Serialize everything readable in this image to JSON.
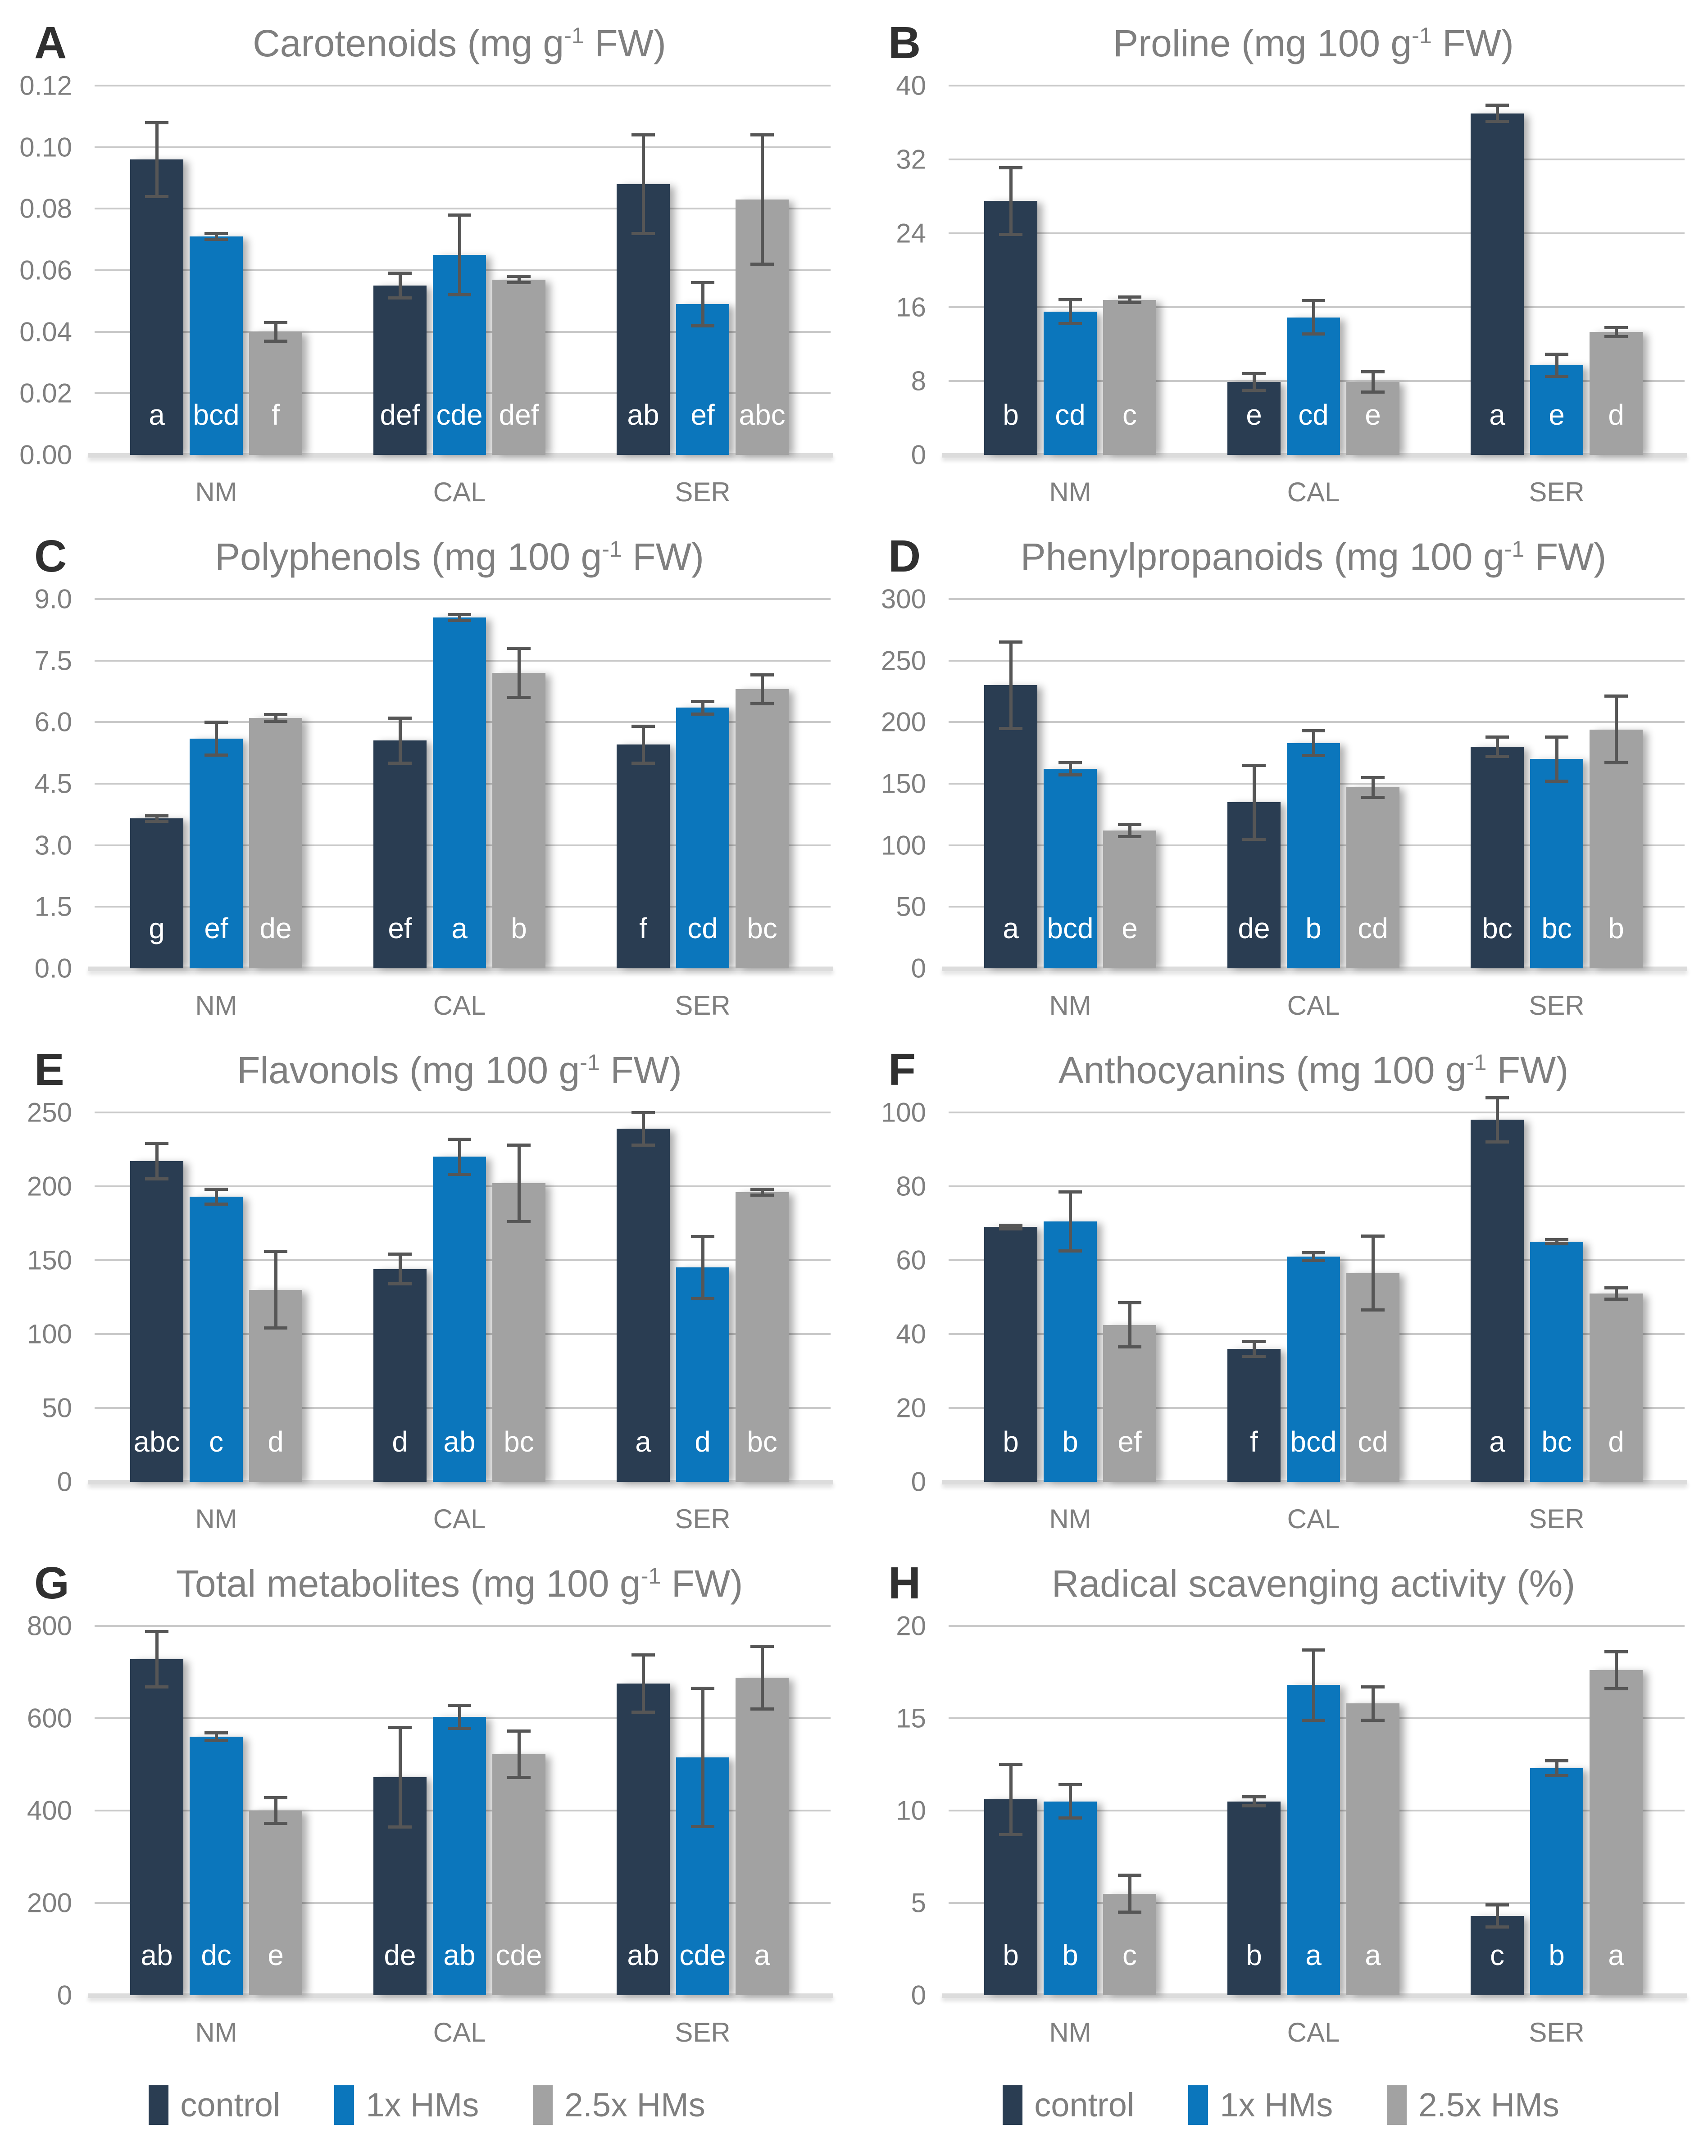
{
  "figure": {
    "legend": {
      "items": [
        {
          "label": "control",
          "color": "#2a3d52"
        },
        {
          "label": "1x HMs",
          "color": "#0b76bc"
        },
        {
          "label": "2.5x HMs",
          "color": "#a2a2a2"
        }
      ],
      "position": "bottom"
    },
    "groups": [
      "NM",
      "CAL",
      "SER"
    ],
    "series_names": [
      "control",
      "1x HMs",
      "2.5x HMs"
    ],
    "error_bar_color": "#565656",
    "gridline_color": "#c9c9c9",
    "text_color": "#7f7f7f"
  },
  "chart_data": [
    {
      "panel": "A",
      "type": "bar",
      "grid": true,
      "title": "Carotenoids (mg g-1 FW)",
      "title_parts": {
        "pre": "Carotenoids (mg g",
        "sup": "-1",
        "post": " FW)"
      },
      "categories": [
        "NM",
        "CAL",
        "SER"
      ],
      "ylim": [
        0,
        0.12
      ],
      "yticks": [
        "0.00",
        "0.02",
        "0.04",
        "0.06",
        "0.08",
        "0.10",
        "0.12"
      ],
      "series": [
        {
          "name": "control",
          "values": [
            0.096,
            0.055,
            0.088
          ],
          "errors": [
            0.012,
            0.004,
            0.016
          ],
          "letters": [
            "a",
            "def",
            "ab"
          ]
        },
        {
          "name": "1x HMs",
          "values": [
            0.071,
            0.065,
            0.049
          ],
          "errors": [
            0.001,
            0.013,
            0.007
          ],
          "letters": [
            "bcd",
            "cde",
            "ef"
          ]
        },
        {
          "name": "2.5x HMs",
          "values": [
            0.04,
            0.057,
            0.083
          ],
          "errors": [
            0.003,
            0.001,
            0.021
          ],
          "letters": [
            "f",
            "def",
            "abc"
          ]
        }
      ]
    },
    {
      "panel": "B",
      "type": "bar",
      "grid": true,
      "title": "Proline (mg 100 g-1 FW)",
      "title_parts": {
        "pre": "Proline (mg 100 g",
        "sup": "-1",
        "post": " FW)"
      },
      "categories": [
        "NM",
        "CAL",
        "SER"
      ],
      "ylim": [
        0,
        40
      ],
      "yticks": [
        "0",
        "8",
        "16",
        "24",
        "32",
        "40"
      ],
      "series": [
        {
          "name": "control",
          "values": [
            27.5,
            7.9,
            37.0
          ],
          "errors": [
            3.6,
            0.9,
            0.9
          ],
          "letters": [
            "b",
            "e",
            "a"
          ]
        },
        {
          "name": "1x HMs",
          "values": [
            15.5,
            14.9,
            9.7
          ],
          "errors": [
            1.3,
            1.8,
            1.2
          ],
          "letters": [
            "cd",
            "cd",
            "e"
          ]
        },
        {
          "name": "2.5x HMs",
          "values": [
            16.8,
            7.9,
            13.3
          ],
          "errors": [
            0.3,
            1.1,
            0.5
          ],
          "letters": [
            "c",
            "e",
            "d"
          ]
        }
      ]
    },
    {
      "panel": "C",
      "type": "bar",
      "grid": true,
      "title": "Polyphenols (mg 100 g-1 FW)",
      "title_parts": {
        "pre": "Polyphenols (mg 100 g",
        "sup": "-1",
        "post": " FW)"
      },
      "categories": [
        "NM",
        "CAL",
        "SER"
      ],
      "ylim": [
        0,
        9
      ],
      "yticks": [
        "0.0",
        "1.5",
        "3.0",
        "4.5",
        "6.0",
        "7.5",
        "9.0"
      ],
      "series": [
        {
          "name": "control",
          "values": [
            3.65,
            5.55,
            5.45
          ],
          "errors": [
            0.07,
            0.55,
            0.45
          ],
          "letters": [
            "g",
            "ef",
            "f"
          ]
        },
        {
          "name": "1x HMs",
          "values": [
            5.6,
            8.55,
            6.35
          ],
          "errors": [
            0.4,
            0.07,
            0.15
          ],
          "letters": [
            "ef",
            "a",
            "cd"
          ]
        },
        {
          "name": "2.5x HMs",
          "values": [
            6.1,
            7.2,
            6.8
          ],
          "errors": [
            0.08,
            0.6,
            0.35
          ],
          "letters": [
            "de",
            "b",
            "bc"
          ]
        }
      ]
    },
    {
      "panel": "D",
      "type": "bar",
      "grid": true,
      "title": "Phenylpropanoids (mg 100 g-1 FW)",
      "title_parts": {
        "pre": "Phenylpropanoids (mg 100 g",
        "sup": "-1",
        "post": " FW)"
      },
      "categories": [
        "NM",
        "CAL",
        "SER"
      ],
      "ylim": [
        0,
        300
      ],
      "yticks": [
        "0",
        "50",
        "100",
        "150",
        "200",
        "250",
        "300"
      ],
      "series": [
        {
          "name": "control",
          "values": [
            230,
            135,
            180
          ],
          "errors": [
            35,
            30,
            8
          ],
          "letters": [
            "a",
            "de",
            "bc"
          ]
        },
        {
          "name": "1x HMs",
          "values": [
            162,
            183,
            170
          ],
          "errors": [
            5,
            10,
            18
          ],
          "letters": [
            "bcd",
            "b",
            "bc"
          ]
        },
        {
          "name": "2.5x HMs",
          "values": [
            112,
            147,
            194
          ],
          "errors": [
            5,
            8,
            27
          ],
          "letters": [
            "e",
            "cd",
            "b"
          ]
        }
      ]
    },
    {
      "panel": "E",
      "type": "bar",
      "grid": true,
      "title": "Flavonols (mg 100 g-1 FW)",
      "title_parts": {
        "pre": "Flavonols (mg 100 g",
        "sup": "-1",
        "post": " FW)"
      },
      "categories": [
        "NM",
        "CAL",
        "SER"
      ],
      "ylim": [
        0,
        250
      ],
      "yticks": [
        "0",
        "50",
        "100",
        "150",
        "200",
        "250"
      ],
      "series": [
        {
          "name": "control",
          "values": [
            217,
            144,
            239
          ],
          "errors": [
            12,
            10,
            11
          ],
          "letters": [
            "abc",
            "d",
            "a"
          ]
        },
        {
          "name": "1x HMs",
          "values": [
            193,
            220,
            145
          ],
          "errors": [
            5,
            12,
            21
          ],
          "letters": [
            "c",
            "ab",
            "d"
          ]
        },
        {
          "name": "2.5x HMs",
          "values": [
            130,
            202,
            196
          ],
          "errors": [
            26,
            26,
            2
          ],
          "letters": [
            "d",
            "bc",
            "bc"
          ]
        }
      ]
    },
    {
      "panel": "F",
      "type": "bar",
      "grid": true,
      "title": "Anthocyanins (mg 100 g-1 FW)",
      "title_parts": {
        "pre": "Anthocyanins (mg 100 g",
        "sup": "-1",
        "post": " FW)"
      },
      "categories": [
        "NM",
        "CAL",
        "SER"
      ],
      "ylim": [
        0,
        100
      ],
      "yticks": [
        "0",
        "20",
        "40",
        "60",
        "80",
        "100"
      ],
      "series": [
        {
          "name": "control",
          "values": [
            69.0,
            36.0,
            98.0
          ],
          "errors": [
            0.5,
            2.0,
            6.0
          ],
          "letters": [
            "b",
            "f",
            "a"
          ]
        },
        {
          "name": "1x HMs",
          "values": [
            70.5,
            61.0,
            65.0
          ],
          "errors": [
            8.0,
            1.0,
            0.5
          ],
          "letters": [
            "b",
            "bcd",
            "bc"
          ]
        },
        {
          "name": "2.5x HMs",
          "values": [
            42.5,
            56.5,
            51.0
          ],
          "errors": [
            6.0,
            10.0,
            1.5
          ],
          "letters": [
            "ef",
            "cd",
            "d"
          ]
        }
      ]
    },
    {
      "panel": "G",
      "type": "bar",
      "grid": true,
      "title": "Total metabolites (mg 100 g-1 FW)",
      "title_parts": {
        "pre": "Total metabolites (mg 100 g",
        "sup": "-1",
        "post": " FW)"
      },
      "categories": [
        "NM",
        "CAL",
        "SER"
      ],
      "ylim": [
        0,
        800
      ],
      "yticks": [
        "0",
        "200",
        "400",
        "600",
        "800"
      ],
      "series": [
        {
          "name": "control",
          "values": [
            728,
            472,
            675
          ],
          "errors": [
            60,
            108,
            62
          ],
          "letters": [
            "ab",
            "de",
            "ab"
          ]
        },
        {
          "name": "1x HMs",
          "values": [
            560,
            603,
            515
          ],
          "errors": [
            8,
            25,
            150
          ],
          "letters": [
            "dc",
            "ab",
            "cde"
          ]
        },
        {
          "name": "2.5x HMs",
          "values": [
            400,
            522,
            688
          ],
          "errors": [
            28,
            50,
            68
          ],
          "letters": [
            "e",
            "cde",
            "a"
          ]
        }
      ]
    },
    {
      "panel": "H",
      "type": "bar",
      "grid": true,
      "title": "Radical scavenging activity (%)",
      "title_parts": {
        "pre": "Radical scavenging activity (%)",
        "sup": "",
        "post": ""
      },
      "categories": [
        "NM",
        "CAL",
        "SER"
      ],
      "ylim": [
        0,
        20
      ],
      "yticks": [
        "0",
        "5",
        "10",
        "15",
        "20"
      ],
      "series": [
        {
          "name": "control",
          "values": [
            10.6,
            10.5,
            4.3
          ],
          "errors": [
            1.9,
            0.25,
            0.6
          ],
          "letters": [
            "b",
            "b",
            "c"
          ]
        },
        {
          "name": "1x HMs",
          "values": [
            10.5,
            16.8,
            12.3
          ],
          "errors": [
            0.9,
            1.9,
            0.4
          ],
          "letters": [
            "b",
            "a",
            "b"
          ]
        },
        {
          "name": "2.5x HMs",
          "values": [
            5.5,
            15.8,
            17.6
          ],
          "errors": [
            1.0,
            0.9,
            1.0
          ],
          "letters": [
            "c",
            "a",
            "a"
          ]
        }
      ]
    }
  ]
}
